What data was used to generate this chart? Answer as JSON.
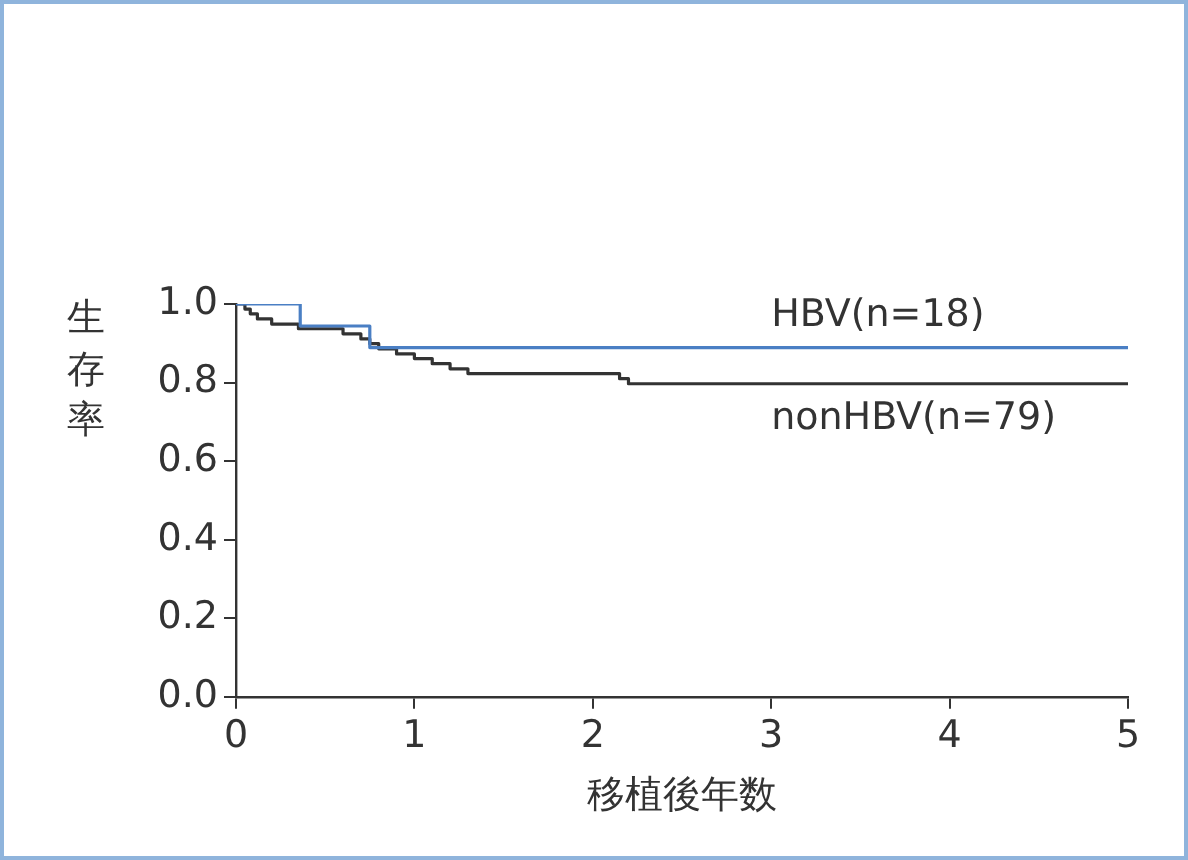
{
  "chart_data": {
    "type": "step",
    "xlabel": "移植後年数",
    "ylabel": "生存率",
    "xlim": [
      0,
      5
    ],
    "xticks": [
      0,
      1,
      2,
      3,
      4,
      5
    ],
    "ylim": [
      0,
      1
    ],
    "yticks": [
      {
        "value": 0,
        "label": "0.0"
      },
      {
        "value": 0.2,
        "label": "0.2"
      },
      {
        "value": 0.4,
        "label": "0.4"
      },
      {
        "value": 0.6,
        "label": "0.6"
      },
      {
        "value": 0.8,
        "label": "0.8"
      },
      {
        "value": 1,
        "label": "1.0"
      }
    ],
    "grid": false,
    "legend": false,
    "marker": "none",
    "line_style": "solid",
    "series": [
      {
        "name": "HBV(n=18)",
        "color": "#4a7fc4",
        "x": [
          0,
          0.36,
          0.75,
          5
        ],
        "values": [
          1,
          0.944,
          0.889,
          0.889
        ]
      },
      {
        "name": "nonHBV(n=79)",
        "color": "#333333",
        "x": [
          0,
          0.05,
          0.08,
          0.12,
          0.2,
          0.35,
          0.6,
          0.7,
          0.75,
          0.8,
          0.9,
          1.0,
          1.1,
          1.2,
          1.3,
          2.15,
          2.2,
          5
        ],
        "values": [
          1,
          0.987,
          0.975,
          0.962,
          0.949,
          0.937,
          0.924,
          0.911,
          0.899,
          0.886,
          0.873,
          0.861,
          0.848,
          0.835,
          0.823,
          0.81,
          0.797,
          0.797
        ]
      }
    ]
  }
}
